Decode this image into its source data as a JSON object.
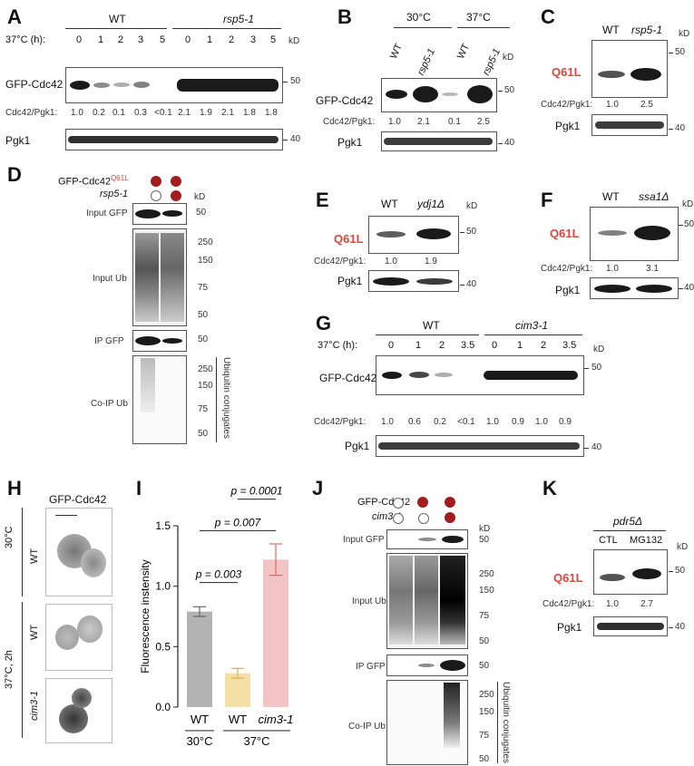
{
  "panels": {
    "A": {
      "letter": "A",
      "wt": "WT",
      "mut": "rsp5-1",
      "time_label": "37°C (h):",
      "times": [
        "0",
        "1",
        "2",
        "3",
        "5",
        "0",
        "1",
        "2",
        "3",
        "5"
      ],
      "kd": "kD",
      "protein": "GFP-Cdc42",
      "ratio_label": "Cdc42/Pgk1:",
      "ratios": [
        "1.0",
        "0.2",
        "0.1",
        "0.3",
        "<0.1",
        "2.1",
        "1.9",
        "2.1",
        "1.8",
        "1.8"
      ],
      "loading": "Pgk1",
      "mw_top": "50",
      "mw_bottom": "40"
    },
    "B": {
      "letter": "B",
      "temps": [
        "30°C",
        "37°C"
      ],
      "lanes": [
        "WT",
        "rsp5-1",
        "WT",
        "rsp5-1"
      ],
      "kd": "kD",
      "protein": "GFP-Cdc42",
      "ratio_label": "Cdc42/Pgk1:",
      "ratios": [
        "1.0",
        "2.1",
        "0.1",
        "2.5"
      ],
      "loading": "Pgk1",
      "mw_top": "50",
      "mw_bottom": "40"
    },
    "C": {
      "letter": "C",
      "lanes": [
        "WT",
        "rsp5-1"
      ],
      "kd": "kD",
      "protein": "Q61L",
      "ratio_label": "Cdc42/Pgk1:",
      "ratios": [
        "1.0",
        "2.5"
      ],
      "loading": "Pgk1",
      "mw_top": "50",
      "mw_bottom": "40"
    },
    "D": {
      "letter": "D",
      "row1": "GFP-Cdc42",
      "row1_sup": "Q61L",
      "row2": "rsp5-1",
      "kd": "kD",
      "blots": [
        "Input GFP",
        "Input Ub",
        "IP GFP",
        "Co-IP Ub"
      ],
      "mw_gfp": "50",
      "mw_ub": [
        "250",
        "150",
        "75",
        "50"
      ],
      "mw_ip": "50",
      "mw_coip": [
        "250",
        "150",
        "75",
        "50"
      ],
      "bracket": "Ubiquitin conjugates"
    },
    "E": {
      "letter": "E",
      "lanes": [
        "WT",
        "ydj1Δ"
      ],
      "kd": "kD",
      "protein": "Q61L",
      "ratio_label": "Cdc42/Pgk1:",
      "ratios": [
        "1.0",
        "1.9"
      ],
      "loading": "Pgk1",
      "mw_top": "50",
      "mw_bottom": "40"
    },
    "F": {
      "letter": "F",
      "lanes": [
        "WT",
        "ssa1Δ"
      ],
      "kd": "kD",
      "protein": "Q61L",
      "ratio_label": "Cdc42/Pgk1:",
      "ratios": [
        "1.0",
        "3.1"
      ],
      "loading": "Pgk1",
      "mw_top": "50",
      "mw_bottom": "40"
    },
    "G": {
      "letter": "G",
      "wt": "WT",
      "mut": "cim3-1",
      "time_label": "37°C (h):",
      "times": [
        "0",
        "1",
        "2",
        "3.5",
        "0",
        "1",
        "2",
        "3.5"
      ],
      "kd": "kD",
      "protein": "GFP-Cdc42",
      "ratio_label": "Cdc42/Pgk1:",
      "ratios": [
        "1.0",
        "0.6",
        "0.2",
        "<0.1",
        "1.0",
        "0.9",
        "1.0",
        "0.9"
      ],
      "loading": "Pgk1",
      "mw_top": "50",
      "mw_bottom": "40"
    },
    "H": {
      "letter": "H",
      "title": "GFP-Cdc42",
      "temp1": "30°C",
      "temp2": "37°C, 2h",
      "rows": [
        "WT",
        "WT",
        "cim3-1"
      ]
    },
    "I": {
      "letter": "I",
      "p_values": [
        "p = 0.003",
        "p = 0.007",
        "p = 0.0001"
      ],
      "groups": [
        "30°C",
        "37°C"
      ]
    },
    "J": {
      "letter": "J",
      "row1": "GFP-Cdc42",
      "row2": "cim3-1",
      "kd": "kD",
      "blots": [
        "Input GFP",
        "Input Ub",
        "IP GFP",
        "Co-IP Ub"
      ],
      "mw_gfp": "50",
      "mw_ub": [
        "250",
        "150",
        "75",
        "50"
      ],
      "mw_ip": "50",
      "mw_coip": [
        "250",
        "150",
        "75",
        "50"
      ],
      "bracket": "Ubiquitin conjugates"
    },
    "K": {
      "letter": "K",
      "strain": "pdr5Δ",
      "lanes": [
        "CTL",
        "MG132"
      ],
      "kd": "kD",
      "protein": "Q61L",
      "ratio_label": "Cdc42/Pgk1:",
      "ratios": [
        "1.0",
        "2.7"
      ],
      "loading": "Pgk1",
      "mw_top": "50",
      "mw_bottom": "40"
    }
  },
  "chart_data": {
    "type": "bar",
    "categories": [
      "WT",
      "WT",
      "cim3-1"
    ],
    "values": [
      0.79,
      0.28,
      1.22
    ],
    "errors": [
      0.04,
      0.04,
      0.13
    ],
    "colors": [
      "#b3b3b3",
      "#f4e0a6",
      "#f2c4c4"
    ],
    "error_colors": [
      "#666666",
      "#d9b24a",
      "#e06666"
    ],
    "ylabel": "Fluorescence instensity",
    "ylim": [
      0,
      1.5
    ],
    "yticks": [
      "0.0",
      "0.5",
      "1.0",
      "1.5"
    ],
    "group_labels": [
      "30°C",
      "37°C"
    ]
  }
}
